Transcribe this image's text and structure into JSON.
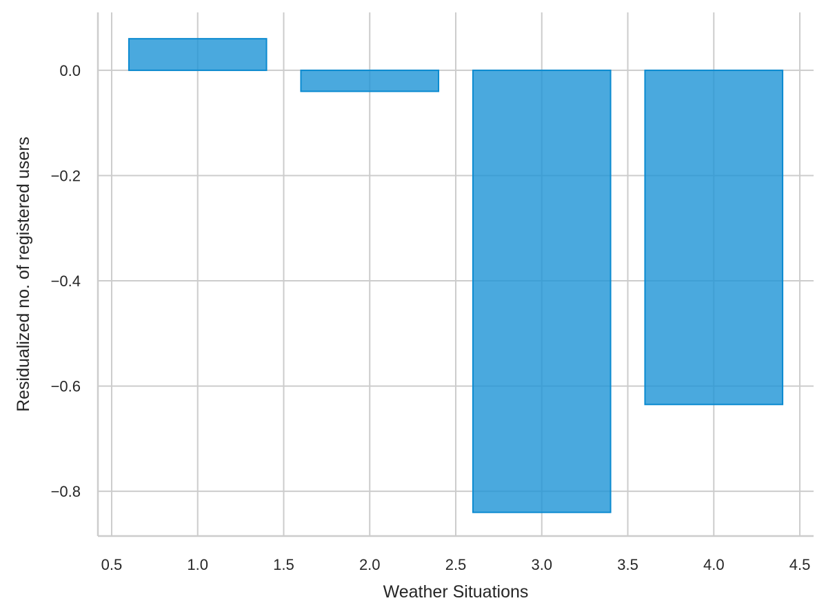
{
  "chart_data": {
    "type": "bar",
    "x": [
      1.0,
      2.0,
      3.0,
      4.0
    ],
    "values": [
      0.06,
      -0.04,
      -0.84,
      -0.635
    ],
    "bar_width": 0.8,
    "xlabel": "Weather Situations",
    "ylabel": "Residualized no. of registered users",
    "xlim": [
      0.42,
      4.58
    ],
    "ylim": [
      -0.885,
      0.11
    ],
    "xticks": [
      0.5,
      1.0,
      1.5,
      2.0,
      2.5,
      3.0,
      3.5,
      4.0,
      4.5
    ],
    "xtick_labels": [
      "0.5",
      "1.0",
      "1.5",
      "2.0",
      "2.5",
      "3.0",
      "3.5",
      "4.0",
      "4.5"
    ],
    "yticks": [
      0.0,
      -0.2,
      -0.4,
      -0.6,
      -0.8
    ],
    "ytick_labels": [
      "0.0",
      "−0.2",
      "−0.4",
      "−0.6",
      "−0.8"
    ],
    "grid": true,
    "legend": "none",
    "colors": {
      "bar_fill": "#1d94d6",
      "bar_edge": "#0a8ad0",
      "grid": "#cccccc",
      "text": "#262626"
    }
  }
}
